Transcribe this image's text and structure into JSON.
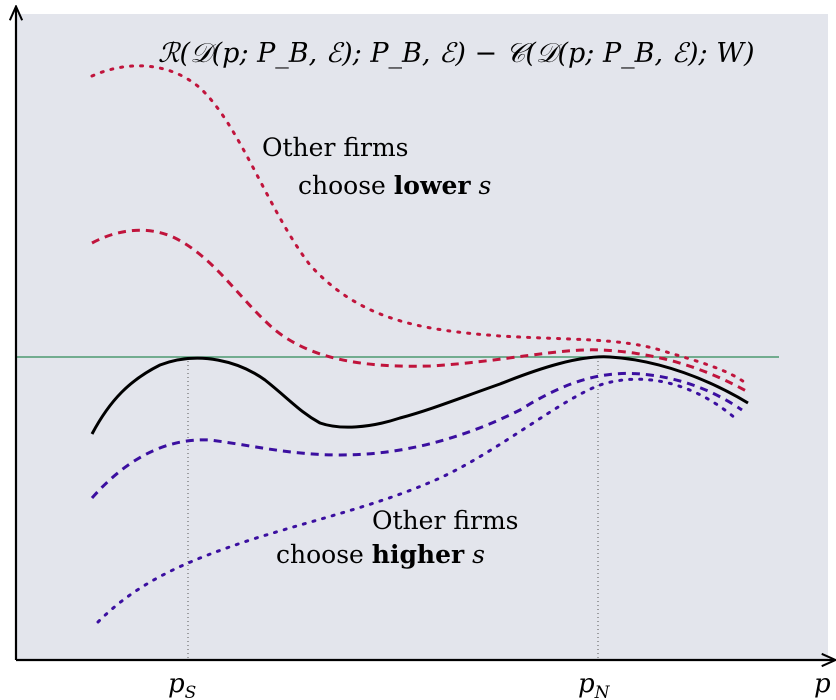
{
  "formula": "ℛ(𝒟(p; P_B, ℰ); P_B, ℰ) − 𝒞(𝒟(p; P_B, ℰ); W)",
  "formula_parts": {
    "R": "ℛ",
    "D": "𝒟",
    "C": "𝒞",
    "E": "ℰ",
    "p": "p",
    "P": "P",
    "B": "B",
    "W": "W"
  },
  "annotations": {
    "lower": {
      "line1": "Other firms",
      "line2_prefix": "choose ",
      "line2_bold": "lower",
      "line2_var": "s"
    },
    "higher": {
      "line1": "Other firms",
      "line2_prefix": "choose ",
      "line2_bold": "higher",
      "line2_var": "s"
    }
  },
  "axes": {
    "x_label": "p",
    "ticks": [
      {
        "main": "p",
        "sub": "S"
      },
      {
        "main": "p",
        "sub": "N"
      }
    ]
  },
  "colors": {
    "background": "#e3e5ec",
    "horizontal_line": "#2e8b57",
    "upper_curves": "#c0143c",
    "lower_curves": "#3b0fa0",
    "main_curve": "#000000"
  }
}
